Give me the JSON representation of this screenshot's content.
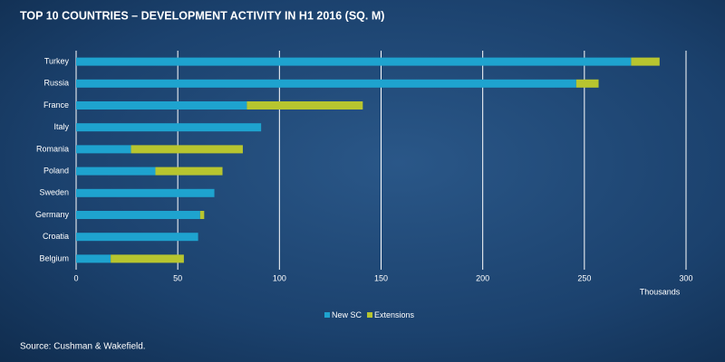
{
  "chart_data": {
    "type": "bar",
    "orientation": "horizontal",
    "stacked": true,
    "title": "TOP 10 COUNTRIES – DEVELOPMENT ACTIVITY IN H1 2016 (SQ. M)",
    "x_label": "Thousands",
    "source": "Source: Cushman & Wakefield.",
    "categories": [
      "Turkey",
      "Russia",
      "France",
      "Italy",
      "Romania",
      "Poland",
      "Sweden",
      "Germany",
      "Croatia",
      "Belgium"
    ],
    "series": [
      {
        "name": "New SC",
        "color": "#1ea3cf",
        "values": [
          273,
          246,
          84,
          91,
          27,
          39,
          68,
          61,
          60,
          17
        ]
      },
      {
        "name": "Extensions",
        "color": "#b7c52f",
        "values": [
          14,
          11,
          57,
          0,
          55,
          33,
          0,
          2,
          0,
          36
        ]
      }
    ],
    "xlim": [
      0,
      300
    ],
    "xticks": [
      0,
      50,
      100,
      150,
      200,
      250,
      300
    ],
    "grid": true
  }
}
